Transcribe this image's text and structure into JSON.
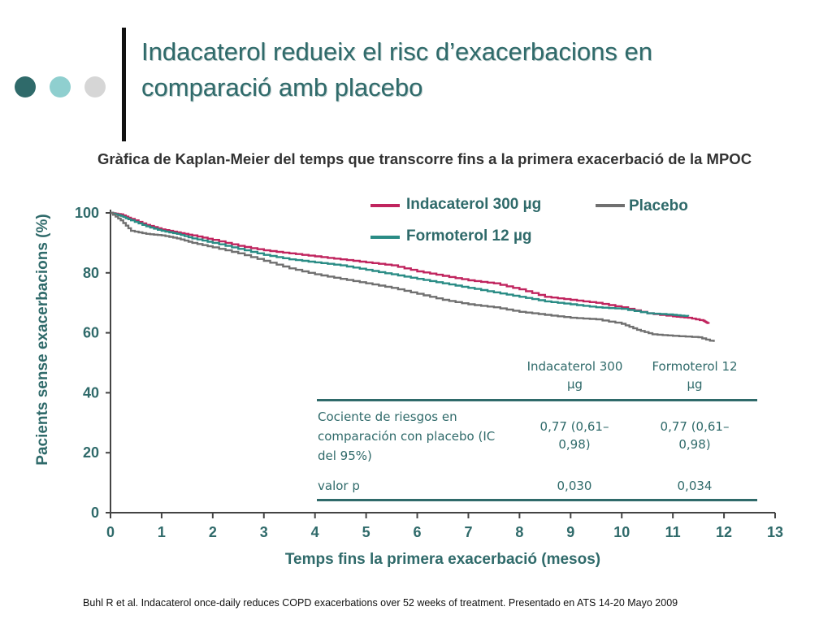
{
  "colors": {
    "title": "#2f6a6a",
    "indacaterol": "#c0245e",
    "formoterol": "#2a8c85",
    "placebo": "#707070",
    "dot_dark": "#2f6a6a",
    "dot_mid": "#8fcfcf",
    "dot_light": "#d6d6d6"
  },
  "slide": {
    "title_line1": "Indacaterol redueix el risc d’exacerbacions en",
    "title_line2": "comparació amb placebo",
    "subtitle": "Gràfica de Kaplan-Meier del temps que transcorre fins a la primera exacerbació de la MPOC",
    "footnote": "Buhl R et al. Indacaterol once-daily reduces COPD exacerbations over 52 weeks of treatment. Presentado en ATS 14-20 Mayo 2009"
  },
  "legend": {
    "indacaterol": "Indacaterol 300 µg",
    "formoterol": "Formoterol 12 µg",
    "placebo": "Placebo"
  },
  "table": {
    "col1_header": "Indacaterol 300 µg",
    "col2_header": "Formoterol 12 µg",
    "row1_label": "Cociente de riesgos en comparación con placebo (IC del 95%)",
    "row1_col1": "0,77 (0,61–0,98)",
    "row1_col2": "0,77 (0,61–0,98)",
    "row2_label": "valor p",
    "row2_col1": "0,030",
    "row2_col2": "0,034"
  },
  "chart_data": {
    "type": "line",
    "title": "",
    "xlabel": "Temps fins la primera exacerbació (mesos)",
    "ylabel": "Pacients sense exacerbacions (%)",
    "xlim": [
      0,
      13
    ],
    "ylim": [
      0,
      100
    ],
    "xticks": [
      0,
      1,
      2,
      3,
      4,
      5,
      6,
      7,
      8,
      9,
      10,
      11,
      12,
      13
    ],
    "yticks": [
      0,
      20,
      40,
      60,
      80,
      100
    ],
    "legend_position": "top-right",
    "series": [
      {
        "name": "Indacaterol 300 µg",
        "color": "#c0245e",
        "x": [
          0,
          0.2,
          0.4,
          0.7,
          1.0,
          1.3,
          1.6,
          2.0,
          2.5,
          3.0,
          3.5,
          4.0,
          4.5,
          5.0,
          5.5,
          6.0,
          6.5,
          7.0,
          7.5,
          8.0,
          8.5,
          9.0,
          9.5,
          10.0,
          10.5,
          11.0,
          11.3,
          11.6,
          11.7
        ],
        "y": [
          100,
          99.5,
          98,
          96,
          94.5,
          93.5,
          92.5,
          91,
          89,
          87.5,
          86.5,
          85.5,
          84.5,
          83.5,
          82.5,
          80.5,
          79,
          77.5,
          76.5,
          74.5,
          72,
          71,
          70,
          68.5,
          66.5,
          65.5,
          65,
          64,
          63
        ]
      },
      {
        "name": "Formoterol 12 µg",
        "color": "#2a8c85",
        "x": [
          0,
          0.2,
          0.4,
          0.7,
          1.0,
          1.3,
          1.6,
          2.0,
          2.5,
          3.0,
          3.5,
          4.0,
          4.5,
          5.0,
          5.5,
          6.0,
          6.5,
          7.0,
          7.5,
          8.0,
          8.5,
          9.0,
          9.5,
          10.0,
          10.5,
          11.0,
          11.3
        ],
        "y": [
          100,
          99,
          97.5,
          95.5,
          94,
          93,
          91.5,
          90,
          88,
          86,
          84.5,
          83.5,
          82.5,
          81,
          79.5,
          78,
          76.5,
          75,
          73.5,
          72,
          70.5,
          69.5,
          68.5,
          68,
          66.5,
          66,
          65.5
        ]
      },
      {
        "name": "Placebo",
        "color": "#707070",
        "x": [
          0,
          0.2,
          0.4,
          0.7,
          1.0,
          1.3,
          1.6,
          2.0,
          2.5,
          3.0,
          3.5,
          4.0,
          4.5,
          5.0,
          5.5,
          6.0,
          6.5,
          7.0,
          7.5,
          8.0,
          8.5,
          9.0,
          9.5,
          10.0,
          10.3,
          10.6,
          11.0,
          11.5,
          11.8
        ],
        "y": [
          100,
          97.5,
          94,
          93,
          92.5,
          91.5,
          90,
          88.5,
          86.5,
          84,
          81.5,
          79.5,
          78,
          76.5,
          75,
          73,
          71,
          69.5,
          68.5,
          67,
          66,
          65,
          64.5,
          63,
          61,
          59.5,
          59,
          58.5,
          57
        ]
      }
    ]
  }
}
